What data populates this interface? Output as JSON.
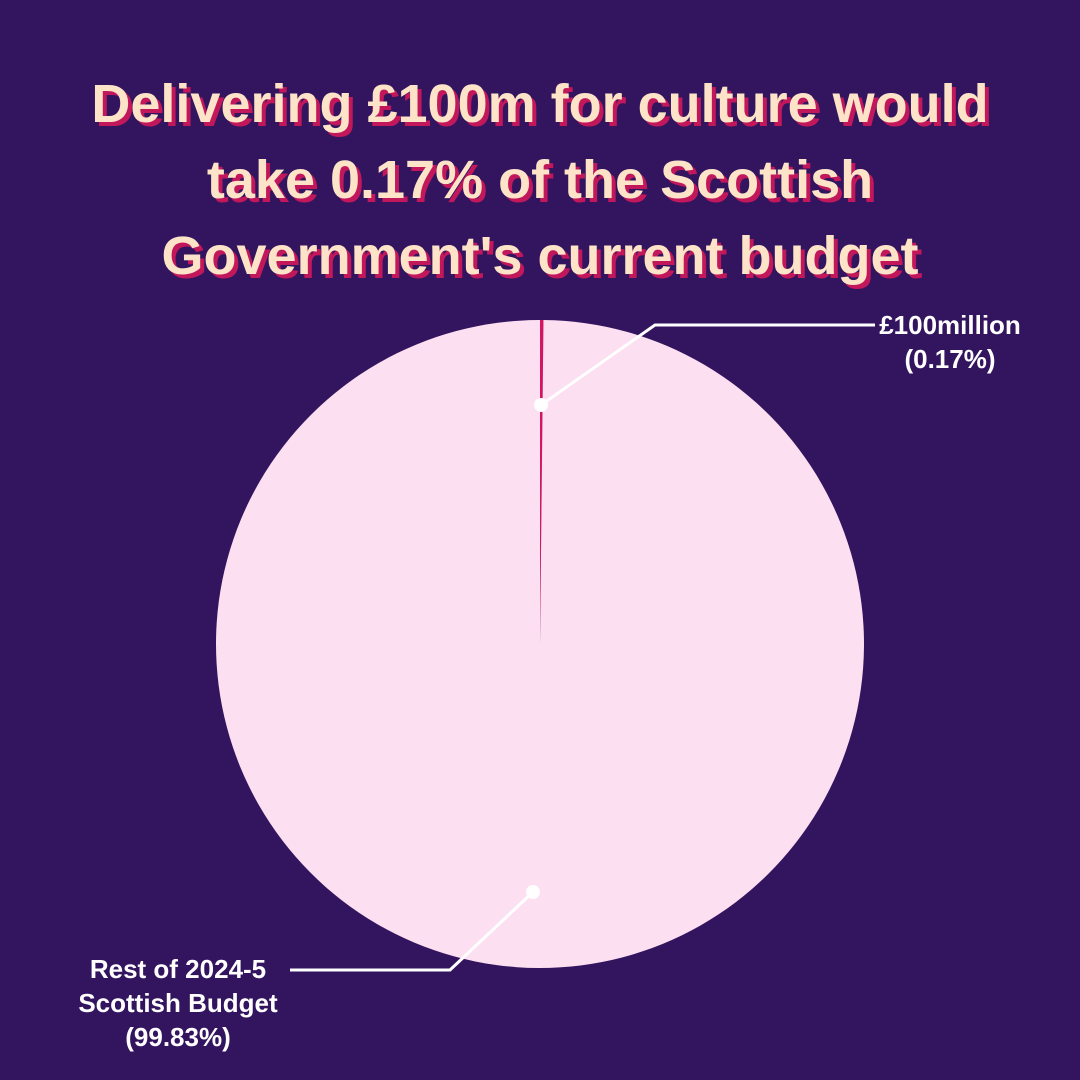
{
  "chart_data": {
    "type": "pie",
    "title": "Delivering £100m for culture would take 0.17% of the Scottish Government's current budget",
    "categories": [
      "£100million",
      "Rest of 2024-5 Scottish Budget"
    ],
    "values": [
      0.17,
      99.83
    ],
    "value_labels": [
      "(0.17%)",
      "(99.83%)"
    ],
    "colors": [
      "#d6145f",
      "#fcdff0"
    ]
  }
}
